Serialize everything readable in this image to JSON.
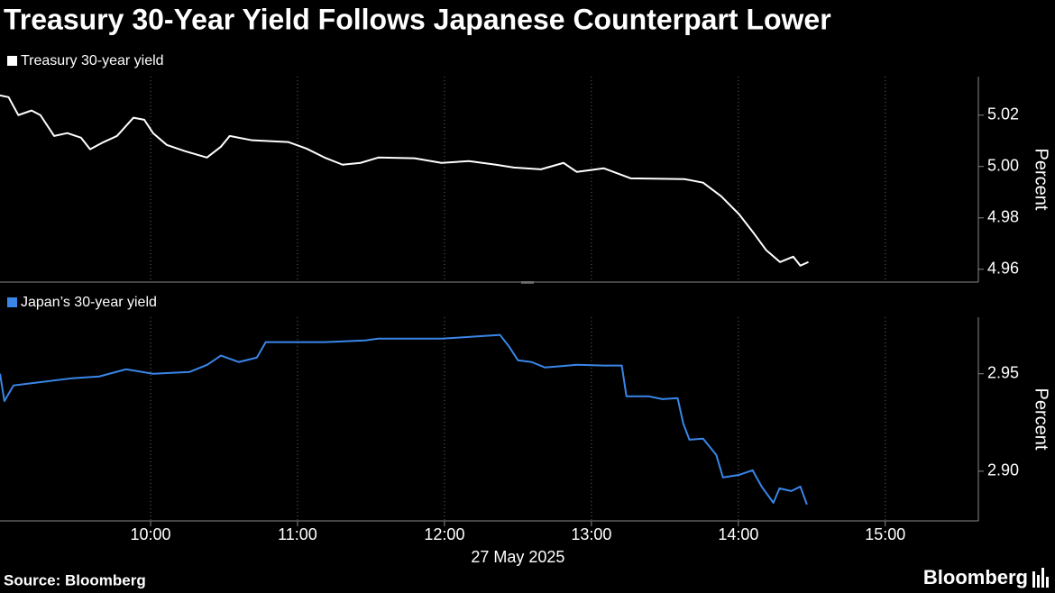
{
  "title": "Treasury 30-Year Yield Follows Japanese Counterpart Lower",
  "source": "Source: Bloomberg",
  "brand": "Bloomberg",
  "chart_data": [
    {
      "type": "line",
      "ylabel": "Percent",
      "xlim": [
        538.5,
        938
      ],
      "ylim": [
        4.955,
        5.035
      ],
      "yticks": [
        5.02,
        {
          "value": 5.0,
          "label": "5.00"
        },
        4.98,
        4.96
      ],
      "x": [
        538.5,
        542,
        546,
        551.4,
        555,
        560.6,
        566,
        571.6,
        575.3,
        580.8,
        586.3,
        593,
        597.4,
        601,
        606.6,
        614,
        623,
        628.7,
        632.3,
        641.5,
        656.3,
        663.6,
        671,
        678.4,
        685.7,
        693,
        707.8,
        718.8,
        730,
        741,
        748.3,
        759.4,
        768.6,
        774,
        785,
        796,
        818,
        825.6,
        833,
        840.3,
        846,
        851.4,
        857,
        862.4,
        865.3,
        868.6
      ],
      "series": [
        {
          "name": "Treasury 30-year yield",
          "color": "#ffffff",
          "values": [
            5.0277,
            5.027,
            5.02,
            5.0218,
            5.02,
            5.0119,
            5.013,
            5.0112,
            5.0067,
            5.0095,
            5.0119,
            5.019,
            5.0182,
            5.013,
            5.0084,
            5.006,
            5.0035,
            5.0077,
            5.0119,
            5.0102,
            5.0095,
            5.007,
            5.0035,
            5.0007,
            5.0014,
            5.0035,
            5.0032,
            5.0014,
            5.0021,
            5.0007,
            4.9996,
            4.9989,
            5.0014,
            4.9979,
            4.9993,
            4.9954,
            4.9951,
            4.9937,
            4.9884,
            4.9814,
            4.9744,
            4.9674,
            4.9628,
            4.9649,
            4.9614,
            4.9628
          ]
        }
      ]
    },
    {
      "type": "line",
      "ylabel": "Percent",
      "xlabel": "27 May 2025",
      "xlim": [
        538.5,
        938
      ],
      "ylim": [
        2.8745,
        2.979
      ],
      "xticks": [
        {
          "value": 600,
          "label": "10:00"
        },
        {
          "value": 660,
          "label": "11:00"
        },
        {
          "value": 720,
          "label": "12:00"
        },
        {
          "value": 780,
          "label": "13:00"
        },
        {
          "value": 840,
          "label": "14:00"
        },
        {
          "value": 900,
          "label": "15:00"
        }
      ],
      "yticks": [
        2.95,
        {
          "value": 2.9,
          "label": "2.90"
        }
      ],
      "x": [
        538.5,
        540.3,
        544,
        553.2,
        568,
        579,
        590,
        601,
        615.8,
        623.1,
        628.7,
        636,
        643.4,
        647,
        656.3,
        671,
        687.6,
        693,
        718.8,
        742.7,
        746.4,
        750,
        755.6,
        761.1,
        774,
        785,
        792.4,
        794.3,
        803.5,
        809,
        815.2,
        817.5,
        820,
        825.6,
        831,
        833.7,
        840.3,
        845.8,
        849.5,
        854.3,
        856.8,
        861.6,
        865.3,
        868
      ],
      "series": [
        {
          "name": "Japan’s 30-year yield",
          "color": "#3a86e8",
          "values": [
            2.95,
            2.936,
            2.944,
            2.9454,
            2.9477,
            2.9486,
            2.9523,
            2.95,
            2.9509,
            2.9546,
            2.9593,
            2.956,
            2.9583,
            2.9662,
            2.9662,
            2.9662,
            2.9671,
            2.968,
            2.968,
            2.9699,
            2.9639,
            2.9569,
            2.956,
            2.9532,
            2.9546,
            2.9542,
            2.9542,
            2.9384,
            2.9384,
            2.937,
            2.9375,
            2.9245,
            2.9162,
            2.9167,
            2.9083,
            2.8968,
            2.8981,
            2.9005,
            2.8921,
            2.8838,
            2.8912,
            2.8898,
            2.8921,
            2.8829
          ]
        }
      ]
    }
  ]
}
